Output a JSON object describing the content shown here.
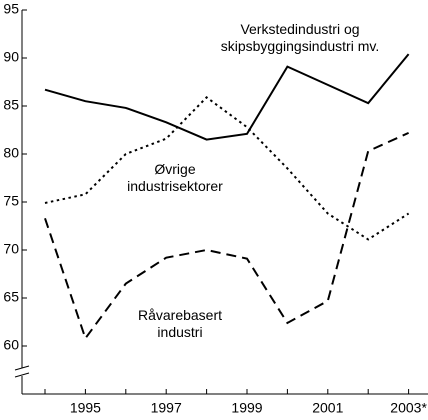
{
  "chart_data": {
    "type": "line",
    "categories": [
      null,
      "1995",
      null,
      "1997",
      null,
      "1999",
      null,
      "2001",
      null,
      "2003*"
    ],
    "series": [
      {
        "name": "Verkstedindustri og\nskipsbyggingsindustri mv.",
        "color": "#000000",
        "dash": "solid",
        "values": [
          86.7,
          85.5,
          84.8,
          83.3,
          81.5,
          82.1,
          89.1,
          87.2,
          85.3,
          90.4
        ]
      },
      {
        "name": "Øvrige\nindustrisektorer",
        "color": "#000000",
        "dash": "dotted",
        "values": [
          74.9,
          75.8,
          80.0,
          81.6,
          85.9,
          82.8,
          78.5,
          73.8,
          71.1,
          73.8
        ]
      },
      {
        "name": "Råvarebasert\nindustri",
        "color": "#000000",
        "dash": "dashed",
        "values": [
          73.3,
          60.8,
          66.5,
          69.2,
          70.0,
          69.1,
          62.4,
          64.7,
          80.3,
          82.2
        ]
      }
    ],
    "ylim": [
      55,
      95
    ],
    "yticks": [
      60,
      65,
      70,
      75,
      80,
      85,
      90,
      95
    ],
    "grid": false
  }
}
